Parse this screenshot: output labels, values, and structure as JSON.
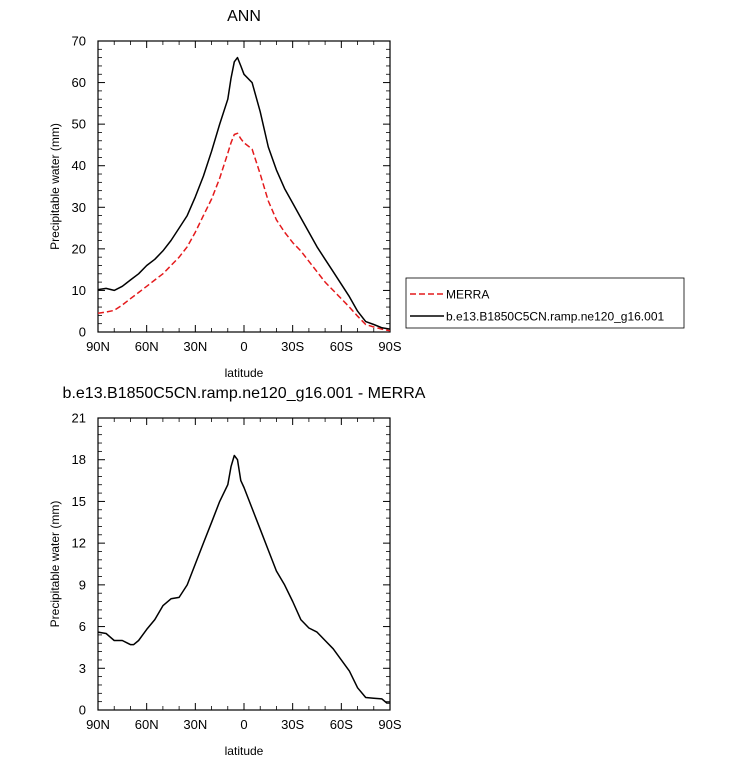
{
  "chart_data": [
    {
      "type": "line",
      "title": "ANN",
      "xlabel": "latitude",
      "ylabel": "Precipitable water (mm)",
      "xlim": [
        90,
        -90
      ],
      "ylim": [
        0,
        70
      ],
      "x_tick_values": [
        90,
        60,
        30,
        0,
        -30,
        -60,
        -90
      ],
      "x_tick_labels": [
        "90N",
        "60N",
        "30N",
        "0",
        "30S",
        "60S",
        "90S"
      ],
      "y_ticks": [
        0,
        10,
        20,
        30,
        40,
        50,
        60,
        70
      ],
      "legend_position": "right",
      "series": [
        {
          "name": "MERRA",
          "color": "#e41a1c",
          "dash": "dashed",
          "x": [
            90,
            85,
            80,
            75,
            70,
            65,
            60,
            55,
            50,
            45,
            40,
            35,
            30,
            25,
            20,
            15,
            10,
            8,
            6,
            4,
            2,
            0,
            -5,
            -10,
            -15,
            -20,
            -25,
            -30,
            -35,
            -40,
            -45,
            -50,
            -55,
            -60,
            -65,
            -70,
            -75,
            -80,
            -85,
            -90
          ],
          "y": [
            4.5,
            4.8,
            5.2,
            6.5,
            8.0,
            9.5,
            11.0,
            12.5,
            14.0,
            16.0,
            18.0,
            20.5,
            24.0,
            28.0,
            32.0,
            37.0,
            43.0,
            45.5,
            47.5,
            47.8,
            46.5,
            45.5,
            44.0,
            38.0,
            31.5,
            27.0,
            24.0,
            21.5,
            19.5,
            17.0,
            14.5,
            12.0,
            10.0,
            8.0,
            6.0,
            3.8,
            1.8,
            1.2,
            0.7,
            0.3
          ]
        },
        {
          "name": "b.e13.B1850C5CN.ramp.ne120_g16.001",
          "color": "#000000",
          "dash": "solid",
          "x": [
            90,
            85,
            80,
            75,
            70,
            65,
            60,
            55,
            50,
            45,
            40,
            35,
            30,
            25,
            20,
            15,
            10,
            8,
            6,
            4,
            2,
            0,
            -5,
            -10,
            -15,
            -20,
            -25,
            -30,
            -35,
            -40,
            -45,
            -50,
            -55,
            -60,
            -65,
            -70,
            -75,
            -80,
            -85,
            -90
          ],
          "y": [
            10.2,
            10.5,
            10.0,
            11.0,
            12.5,
            14.0,
            16.0,
            17.5,
            19.5,
            22.0,
            25.0,
            28.0,
            32.5,
            37.5,
            43.5,
            50.0,
            56.0,
            61.0,
            65.0,
            66.0,
            64.0,
            62.0,
            60.0,
            53.0,
            44.5,
            39.0,
            34.5,
            31.0,
            27.5,
            24.0,
            20.5,
            17.5,
            14.5,
            11.5,
            8.5,
            5.0,
            2.5,
            1.8,
            1.0,
            0.7
          ]
        }
      ]
    },
    {
      "type": "line",
      "title": "b.e13.B1850C5CN.ramp.ne120_g16.001 - MERRA",
      "xlabel": "latitude",
      "ylabel": "Precipitable water (mm)",
      "xlim": [
        90,
        -90
      ],
      "ylim": [
        0,
        21
      ],
      "x_tick_values": [
        90,
        60,
        30,
        0,
        -30,
        -60,
        -90
      ],
      "x_tick_labels": [
        "90N",
        "60N",
        "30N",
        "0",
        "30S",
        "60S",
        "90S"
      ],
      "y_ticks": [
        0,
        3,
        6,
        9,
        12,
        15,
        18,
        21
      ],
      "series": [
        {
          "color": "#000000",
          "dash": "solid",
          "x": [
            90,
            85,
            80,
            75,
            70,
            68,
            65,
            60,
            55,
            50,
            45,
            40,
            35,
            30,
            25,
            20,
            15,
            10,
            8,
            6,
            4,
            2,
            0,
            -5,
            -10,
            -15,
            -20,
            -25,
            -30,
            -35,
            -40,
            -45,
            -50,
            -55,
            -60,
            -65,
            -70,
            -75,
            -80,
            -85,
            -88,
            -90
          ],
          "y": [
            5.6,
            5.5,
            5.0,
            5.0,
            4.7,
            4.7,
            5.0,
            5.8,
            6.5,
            7.5,
            8.0,
            8.1,
            9.0,
            10.5,
            12.0,
            13.5,
            15.0,
            16.2,
            17.5,
            18.3,
            18.0,
            16.5,
            16.0,
            14.5,
            13.0,
            11.5,
            10.0,
            9.0,
            7.8,
            6.5,
            5.9,
            5.6,
            5.0,
            4.4,
            3.6,
            2.8,
            1.6,
            0.9,
            0.85,
            0.8,
            0.5,
            0.5
          ]
        }
      ]
    }
  ]
}
